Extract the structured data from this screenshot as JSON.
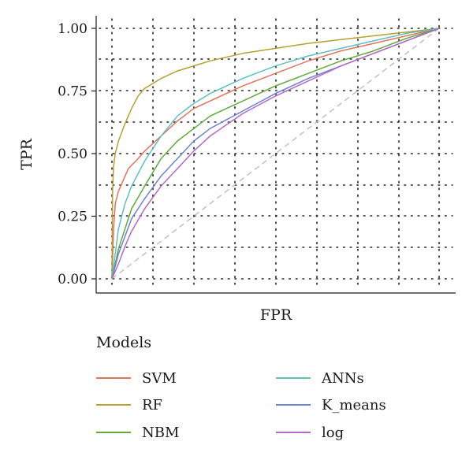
{
  "chart_data": {
    "type": "line",
    "title": "",
    "xlabel": "FPR",
    "ylabel": "TPR",
    "xlim": [
      0,
      1
    ],
    "ylim": [
      0,
      1
    ],
    "y_ticks": [
      "0.00",
      "0.25",
      "0.50",
      "0.75",
      "1.00"
    ],
    "x_ticks_labeled": false,
    "grid": "dotted",
    "legend_title": "Models",
    "legend_position": "bottom",
    "reference_line": {
      "x": [
        0,
        1
      ],
      "y": [
        0,
        1
      ],
      "style": "dashed",
      "color": "#bdbdbd"
    },
    "series": [
      {
        "name": "SVM",
        "color": "#E2725B",
        "x": [
          0,
          0.005,
          0.01,
          0.02,
          0.05,
          0.08,
          0.1,
          0.15,
          0.2,
          0.25,
          0.3,
          0.4,
          0.5,
          0.6,
          0.7,
          0.8,
          0.9,
          1
        ],
        "y": [
          0,
          0.2,
          0.3,
          0.35,
          0.44,
          0.48,
          0.51,
          0.57,
          0.63,
          0.68,
          0.71,
          0.77,
          0.82,
          0.87,
          0.91,
          0.94,
          0.97,
          1
        ]
      },
      {
        "name": "RF",
        "color": "#B6A02E",
        "x": [
          0,
          0.002,
          0.005,
          0.01,
          0.02,
          0.04,
          0.06,
          0.08,
          0.1,
          0.15,
          0.2,
          0.3,
          0.4,
          0.5,
          0.6,
          0.7,
          0.8,
          0.9,
          1
        ],
        "y": [
          0,
          0.35,
          0.45,
          0.5,
          0.55,
          0.62,
          0.68,
          0.73,
          0.76,
          0.8,
          0.83,
          0.87,
          0.9,
          0.92,
          0.94,
          0.955,
          0.97,
          0.985,
          1
        ]
      },
      {
        "name": "NBM",
        "color": "#5EAA3A",
        "x": [
          0,
          0.01,
          0.02,
          0.04,
          0.06,
          0.1,
          0.15,
          0.2,
          0.25,
          0.3,
          0.4,
          0.5,
          0.6,
          0.7,
          0.8,
          0.9,
          1
        ],
        "y": [
          0,
          0.06,
          0.12,
          0.2,
          0.28,
          0.37,
          0.48,
          0.55,
          0.6,
          0.65,
          0.71,
          0.77,
          0.82,
          0.87,
          0.91,
          0.96,
          1
        ]
      },
      {
        "name": "ANNs",
        "color": "#5BBFC4",
        "x": [
          0,
          0.01,
          0.02,
          0.04,
          0.06,
          0.1,
          0.15,
          0.2,
          0.25,
          0.3,
          0.4,
          0.5,
          0.6,
          0.7,
          0.8,
          0.9,
          1
        ],
        "y": [
          0,
          0.1,
          0.2,
          0.3,
          0.37,
          0.47,
          0.57,
          0.65,
          0.7,
          0.74,
          0.8,
          0.85,
          0.89,
          0.92,
          0.95,
          0.98,
          1
        ]
      },
      {
        "name": "K_means",
        "color": "#6C82D4",
        "x": [
          0,
          0.01,
          0.02,
          0.04,
          0.06,
          0.1,
          0.15,
          0.2,
          0.25,
          0.3,
          0.4,
          0.5,
          0.6,
          0.7,
          0.8,
          0.9,
          1
        ],
        "y": [
          0,
          0.05,
          0.1,
          0.17,
          0.24,
          0.32,
          0.41,
          0.48,
          0.55,
          0.6,
          0.67,
          0.74,
          0.8,
          0.85,
          0.9,
          0.95,
          1
        ]
      },
      {
        "name": "log",
        "color": "#B469C4",
        "x": [
          0,
          0.01,
          0.02,
          0.04,
          0.06,
          0.1,
          0.15,
          0.2,
          0.25,
          0.3,
          0.4,
          0.5,
          0.6,
          0.7,
          0.8,
          0.9,
          1
        ],
        "y": [
          0,
          0.03,
          0.06,
          0.13,
          0.19,
          0.28,
          0.37,
          0.44,
          0.51,
          0.57,
          0.66,
          0.73,
          0.79,
          0.85,
          0.9,
          0.95,
          1
        ]
      }
    ]
  }
}
